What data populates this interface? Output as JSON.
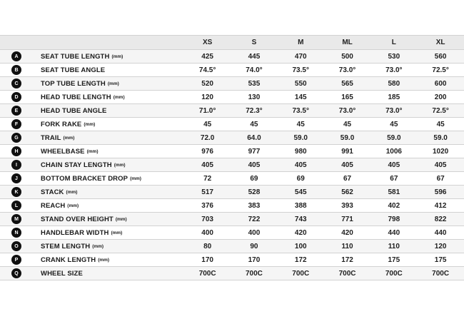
{
  "table": {
    "size_headers": [
      "XS",
      "S",
      "M",
      "ML",
      "L",
      "XL"
    ],
    "rows": [
      {
        "letter": "A",
        "label": "SEAT TUBE LENGTH",
        "unit": "(mm)",
        "values": [
          "425",
          "445",
          "470",
          "500",
          "530",
          "560"
        ]
      },
      {
        "letter": "B",
        "label": "SEAT TUBE ANGLE",
        "unit": "",
        "values": [
          "74.5°",
          "74.0°",
          "73.5°",
          "73.0°",
          "73.0°",
          "72.5°"
        ]
      },
      {
        "letter": "C",
        "label": "TOP TUBE LENGTH",
        "unit": "(mm)",
        "values": [
          "520",
          "535",
          "550",
          "565",
          "580",
          "600"
        ]
      },
      {
        "letter": "D",
        "label": "HEAD TUBE LENGTH",
        "unit": "(mm)",
        "values": [
          "120",
          "130",
          "145",
          "165",
          "185",
          "200"
        ]
      },
      {
        "letter": "E",
        "label": "HEAD TUBE ANGLE",
        "unit": "",
        "values": [
          "71.0°",
          "72.3°",
          "73.5°",
          "73.0°",
          "73.0°",
          "72.5°"
        ]
      },
      {
        "letter": "F",
        "label": "FORK RAKE",
        "unit": "(mm)",
        "values": [
          "45",
          "45",
          "45",
          "45",
          "45",
          "45"
        ]
      },
      {
        "letter": "G",
        "label": "TRAIL",
        "unit": "(mm)",
        "values": [
          "72.0",
          "64.0",
          "59.0",
          "59.0",
          "59.0",
          "59.0"
        ]
      },
      {
        "letter": "H",
        "label": "WHEELBASE",
        "unit": "(mm)",
        "values": [
          "976",
          "977",
          "980",
          "991",
          "1006",
          "1020"
        ]
      },
      {
        "letter": "I",
        "label": "CHAIN STAY LENGTH",
        "unit": "(mm)",
        "values": [
          "405",
          "405",
          "405",
          "405",
          "405",
          "405"
        ]
      },
      {
        "letter": "J",
        "label": "BOTTOM BRACKET DROP",
        "unit": "(mm)",
        "values": [
          "72",
          "69",
          "69",
          "67",
          "67",
          "67"
        ]
      },
      {
        "letter": "K",
        "label": "STACK",
        "unit": "(mm)",
        "values": [
          "517",
          "528",
          "545",
          "562",
          "581",
          "596"
        ]
      },
      {
        "letter": "L",
        "label": "REACH",
        "unit": "(mm)",
        "values": [
          "376",
          "383",
          "388",
          "393",
          "402",
          "412"
        ]
      },
      {
        "letter": "M",
        "label": "STAND OVER HEIGHT",
        "unit": "(mm)",
        "values": [
          "703",
          "722",
          "743",
          "771",
          "798",
          "822"
        ]
      },
      {
        "letter": "N",
        "label": "HANDLEBAR WIDTH",
        "unit": "(mm)",
        "values": [
          "400",
          "400",
          "420",
          "420",
          "440",
          "440"
        ]
      },
      {
        "letter": "O",
        "label": "STEM LENGTH",
        "unit": "(mm)",
        "values": [
          "80",
          "90",
          "100",
          "110",
          "110",
          "120"
        ]
      },
      {
        "letter": "P",
        "label": "CRANK LENGTH",
        "unit": "(mm)",
        "values": [
          "170",
          "170",
          "172",
          "172",
          "175",
          "175"
        ]
      },
      {
        "letter": "Q",
        "label": "WHEEL SIZE",
        "unit": "",
        "values": [
          "700C",
          "700C",
          "700C",
          "700C",
          "700C",
          "700C"
        ]
      }
    ]
  },
  "colors": {
    "header_bg": "#e9e9e9",
    "stripe_bg": "#f5f5f5",
    "row_bg": "#ffffff",
    "border": "#d2d2d2",
    "text": "#1e1e1e",
    "badge_bg": "#101010",
    "badge_text": "#ffffff"
  }
}
